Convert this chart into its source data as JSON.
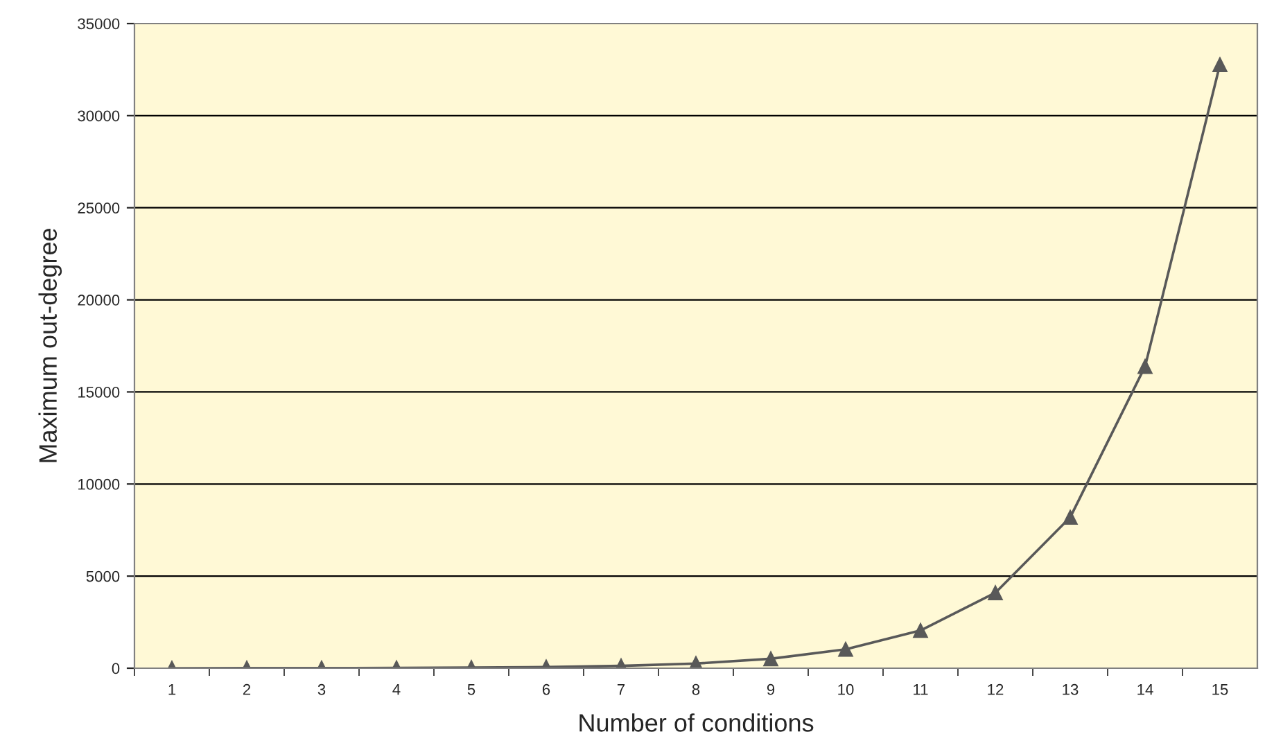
{
  "chart_data": {
    "type": "line",
    "xlabel": "Number of conditions",
    "ylabel": "Maximum out-degree",
    "categories": [
      "1",
      "2",
      "3",
      "4",
      "5",
      "6",
      "7",
      "8",
      "9",
      "10",
      "11",
      "12",
      "13",
      "14",
      "15"
    ],
    "series": [
      {
        "color": "#595959",
        "values": [
          2,
          4,
          8,
          16,
          32,
          64,
          128,
          256,
          512,
          1024,
          2048,
          4096,
          8192,
          16384,
          32768
        ]
      }
    ],
    "ylim": [
      0,
      35000
    ],
    "yticks": [
      0,
      5000,
      10000,
      15000,
      20000,
      25000,
      30000,
      35000
    ],
    "grid": "y",
    "marker": "triangle",
    "line_style": "solid",
    "legend": false
  }
}
